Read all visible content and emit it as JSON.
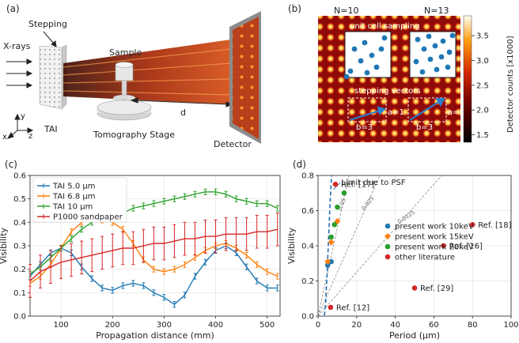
{
  "panel_a": {
    "label": "(a)",
    "xrays": "X-rays",
    "stepping": "Stepping",
    "sample": "Sample",
    "tai": "TAI",
    "tomo_stage": "Tomography Stage",
    "detector": "Detector",
    "d": "d",
    "axis_x": "x",
    "axis_y": "y",
    "axis_z": "z"
  },
  "panel_b": {
    "label": "(b)",
    "n10": "N=10",
    "n13": "N=13",
    "unit_cell": "unit cell sampling",
    "stepping_vectors": "stepping vectors",
    "a1": "a=1",
    "a2": "a=2",
    "b3a": "b=3",
    "b3b": "b=3",
    "colorbar_label": "Detector counts [x1000]",
    "colorbar_ticks": [
      "1.5",
      "2.0",
      "2.5",
      "3.0",
      "3.5"
    ],
    "colorbar_range": [
      1.35,
      3.9
    ]
  },
  "chart_data": [
    {
      "panel": "(c)",
      "type": "line",
      "xlabel": "Propagation distance (mm)",
      "ylabel": "Visibility",
      "xlim": [
        40,
        525
      ],
      "ylim": [
        0,
        0.6
      ],
      "xticks": [
        "100",
        "200",
        "300",
        "400",
        "500"
      ],
      "yticks": [
        "0.0",
        "0.1",
        "0.2",
        "0.3",
        "0.4",
        "0.5",
        "0.6"
      ],
      "legend": "top-left",
      "series": [
        {
          "name": "TAI 5.0 μm",
          "color": "#1f77b4",
          "x": [
            40,
            60,
            80,
            100,
            120,
            140,
            160,
            180,
            200,
            220,
            240,
            260,
            280,
            300,
            320,
            340,
            360,
            380,
            400,
            420,
            440,
            460,
            480,
            500,
            520
          ],
          "y": [
            0.17,
            0.22,
            0.27,
            0.29,
            0.27,
            0.21,
            0.16,
            0.12,
            0.11,
            0.13,
            0.14,
            0.13,
            0.1,
            0.08,
            0.05,
            0.09,
            0.17,
            0.23,
            0.28,
            0.3,
            0.27,
            0.21,
            0.15,
            0.12,
            0.12
          ]
        },
        {
          "name": "TAI 6.8 μm",
          "color": "#ff7f0e",
          "x": [
            40,
            60,
            80,
            100,
            120,
            140,
            160,
            180,
            200,
            220,
            240,
            260,
            280,
            300,
            320,
            340,
            360,
            380,
            400,
            420,
            440,
            460,
            480,
            500,
            520
          ],
          "y": [
            0.14,
            0.17,
            0.22,
            0.29,
            0.36,
            0.4,
            0.42,
            0.41,
            0.4,
            0.37,
            0.31,
            0.24,
            0.2,
            0.19,
            0.2,
            0.22,
            0.25,
            0.28,
            0.3,
            0.31,
            0.29,
            0.26,
            0.22,
            0.19,
            0.17
          ]
        },
        {
          "name": "TAI 10 μm",
          "color": "#2ca02c",
          "x": [
            40,
            60,
            80,
            100,
            120,
            140,
            160,
            180,
            200,
            220,
            240,
            260,
            280,
            300,
            320,
            340,
            360,
            380,
            400,
            420,
            440,
            460,
            480,
            500,
            520
          ],
          "y": [
            0.18,
            0.21,
            0.25,
            0.29,
            0.33,
            0.37,
            0.4,
            0.42,
            0.43,
            0.44,
            0.46,
            0.47,
            0.48,
            0.49,
            0.5,
            0.51,
            0.52,
            0.53,
            0.53,
            0.52,
            0.5,
            0.49,
            0.48,
            0.48,
            0.46
          ]
        },
        {
          "name": "P1000 sandpaper",
          "color": "#d62728",
          "x": [
            40,
            60,
            80,
            100,
            120,
            140,
            160,
            180,
            200,
            220,
            240,
            260,
            280,
            300,
            320,
            340,
            360,
            380,
            400,
            420,
            440,
            460,
            480,
            500,
            520
          ],
          "y": [
            0.15,
            0.19,
            0.21,
            0.23,
            0.24,
            0.25,
            0.26,
            0.27,
            0.28,
            0.29,
            0.29,
            0.3,
            0.31,
            0.31,
            0.32,
            0.33,
            0.33,
            0.34,
            0.34,
            0.35,
            0.35,
            0.35,
            0.36,
            0.36,
            0.37
          ]
        }
      ]
    },
    {
      "panel": "(d)",
      "type": "scatter",
      "xlabel": "Period (μm)",
      "ylabel": "Visibility",
      "xlim": [
        0,
        100
      ],
      "ylim": [
        0,
        0.8
      ],
      "xticks": [
        "0",
        "20",
        "40",
        "60",
        "80",
        "100"
      ],
      "yticks": [
        "0.0",
        "0.2",
        "0.4",
        "0.6",
        "0.8"
      ],
      "legend": "right",
      "psf_label": "Limit due to PSF",
      "slope_labels": [
        "0.05",
        "0.025",
        "0.0125"
      ],
      "series": [
        {
          "name": "present work 10keV",
          "color": "#1f77b4",
          "x": [
            5.0,
            6.8
          ],
          "y": [
            0.29,
            0.31
          ]
        },
        {
          "name": "present work 15keV",
          "color": "#ff7f0e",
          "x": [
            5.0,
            6.8,
            10
          ],
          "y": [
            0.31,
            0.42,
            0.54
          ]
        },
        {
          "name": "present work 20keV",
          "color": "#2ca02c",
          "x": [
            6.8,
            8.5,
            10,
            13.5
          ],
          "y": [
            0.45,
            0.52,
            0.62,
            0.7
          ]
        },
        {
          "name": "other literature",
          "color": "#d62728",
          "x": [
            9,
            80,
            65,
            50,
            6.5
          ],
          "y": [
            0.75,
            0.52,
            0.4,
            0.16,
            0.05
          ],
          "labels": [
            "Ref. [17]",
            "Ref. [18]",
            "Ref. [16]",
            "Ref. [29]",
            "Ref. [12]"
          ]
        }
      ]
    }
  ],
  "panel_c_label": "(c)",
  "panel_d_label": "(d)"
}
